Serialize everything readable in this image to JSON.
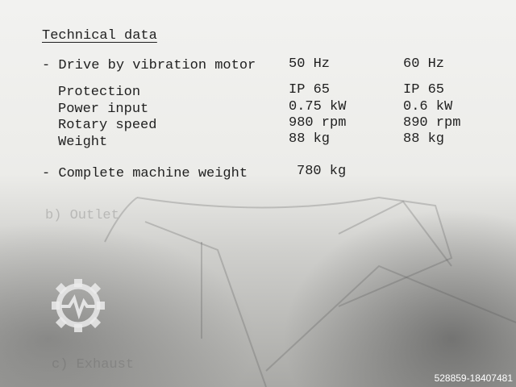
{
  "section": {
    "title": "Technical data",
    "drive": {
      "label": "- Drive by vibration motor",
      "col1": "50 Hz",
      "col2": "60 Hz"
    },
    "rows": [
      {
        "label": "Protection",
        "col1": "IP 65",
        "col2": "IP 65"
      },
      {
        "label": "Power input",
        "col1": "0.75 kW",
        "col2": "0.6 kW"
      },
      {
        "label": "Rotary speed",
        "col1": "980 rpm",
        "col2": "890 rpm"
      },
      {
        "label": "Weight",
        "col1": "88 kg",
        "col2": "88 kg"
      }
    ],
    "machine_weight": {
      "label": "- Complete machine weight",
      "value": "780 kg"
    }
  },
  "show_through": {
    "outlet_heading": "b) Outlet",
    "exhaust_heading": "c) Exhaust"
  },
  "watermark": {
    "icon": "gear-pulse-logo",
    "listing_id": "528859-18407481"
  }
}
